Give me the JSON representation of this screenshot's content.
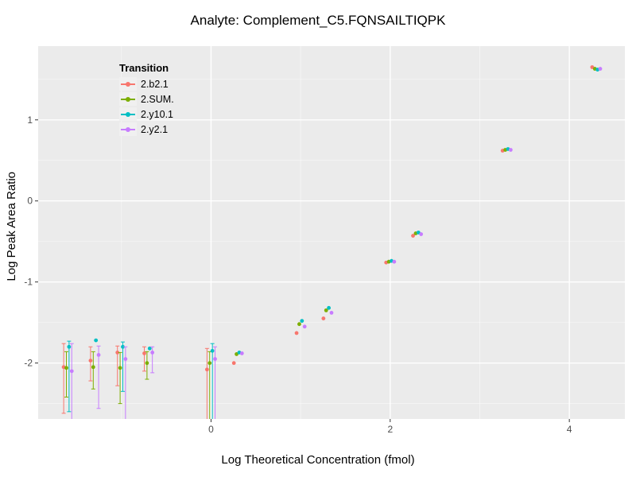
{
  "title": "Analyte: Complement_C5.FQNSAILTIQPK",
  "chart_data": {
    "type": "scatter",
    "title": "Analyte: Complement_C5.FQNSAILTIQPK",
    "xlabel": "Log Theoretical Concentration (fmol)",
    "ylabel": "Log Peak Area Ratio",
    "legend_title": "Transition",
    "legend_position": "inside-top-left",
    "grid": true,
    "panel_color": "#EBEBEB",
    "grid_color": "#FFFFFF",
    "tick_color": "#333333",
    "tick_label_color": "#4D4D4D",
    "xlim": [
      -1.93,
      4.62
    ],
    "ylim": [
      -2.69,
      1.91
    ],
    "x_ticks": [
      0,
      2,
      4
    ],
    "y_ticks": [
      -2,
      -1,
      0,
      1
    ],
    "x_minor": [
      -1,
      1,
      3
    ],
    "y_minor": [
      -2.5,
      -1.5,
      -0.5,
      0.5,
      1.5
    ],
    "dodge": 0.03,
    "series": [
      {
        "name": "2.b2.1",
        "color": "#F8766D",
        "points": [
          [
            -1.6,
            -2.05,
            -2.62,
            -1.76
          ],
          [
            -1.3,
            -1.97,
            -2.22,
            -1.8
          ],
          [
            -1.0,
            -1.87,
            -2.28,
            -1.79
          ],
          [
            -0.7,
            -1.88,
            -2.1,
            -1.8
          ],
          [
            0.0,
            -2.08,
            -2.8,
            -1.82
          ],
          [
            0.3,
            -2.0
          ],
          [
            1.0,
            -1.63
          ],
          [
            1.3,
            -1.45
          ],
          [
            2.0,
            -0.76
          ],
          [
            2.3,
            -0.43
          ],
          [
            3.3,
            0.62
          ],
          [
            4.3,
            1.65
          ]
        ]
      },
      {
        "name": "2.SUM.",
        "color": "#7CAE00",
        "points": [
          [
            -1.6,
            -2.06,
            -2.42,
            -1.86
          ],
          [
            -1.3,
            -2.05,
            -2.32,
            -1.86
          ],
          [
            -1.0,
            -2.06,
            -2.5,
            -1.87
          ],
          [
            -0.7,
            -2.0,
            -2.2,
            -1.86
          ],
          [
            0.0,
            -2.0,
            -2.8,
            -1.86
          ],
          [
            0.3,
            -1.89
          ],
          [
            1.0,
            -1.52
          ],
          [
            1.3,
            -1.35
          ],
          [
            2.0,
            -0.75
          ],
          [
            2.3,
            -0.4
          ],
          [
            3.3,
            0.63
          ],
          [
            4.3,
            1.63
          ]
        ]
      },
      {
        "name": "2.y10.1",
        "color": "#00BFC4",
        "points": [
          [
            -1.6,
            -1.8,
            -2.6,
            -1.73
          ],
          [
            -1.3,
            -1.72
          ],
          [
            -1.0,
            -1.8,
            -2.35,
            -1.74
          ],
          [
            -0.7,
            -1.82
          ],
          [
            0.0,
            -1.85,
            -2.8,
            -1.76
          ],
          [
            0.3,
            -1.87
          ],
          [
            1.0,
            -1.48
          ],
          [
            1.3,
            -1.32
          ],
          [
            2.0,
            -0.74
          ],
          [
            2.3,
            -0.39
          ],
          [
            3.3,
            0.64
          ],
          [
            4.3,
            1.62
          ]
        ]
      },
      {
        "name": "2.y2.1",
        "color": "#C77CFF",
        "points": [
          [
            -1.6,
            -2.1,
            -2.8,
            -1.76
          ],
          [
            -1.3,
            -1.9,
            -2.56,
            -1.79
          ],
          [
            -1.0,
            -1.95,
            -2.76,
            -1.8
          ],
          [
            -0.7,
            -1.87,
            -2.12,
            -1.8
          ],
          [
            0.0,
            -1.95,
            -2.8,
            -1.8
          ],
          [
            0.3,
            -1.88
          ],
          [
            1.0,
            -1.55
          ],
          [
            1.3,
            -1.38
          ],
          [
            2.0,
            -0.75
          ],
          [
            2.3,
            -0.41
          ],
          [
            3.3,
            0.63
          ],
          [
            4.3,
            1.63
          ]
        ]
      }
    ]
  }
}
